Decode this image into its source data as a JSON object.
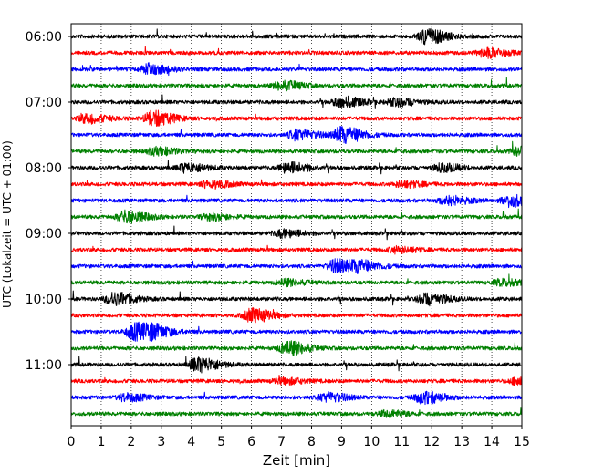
{
  "chart_data": {
    "type": "line",
    "title": "",
    "xlabel": "Zeit  [min]",
    "ylabel": "UTC (Lokalzeit = UTC + 01:00)",
    "xlim": [
      0,
      15
    ],
    "x_ticks": [
      "0",
      "1",
      "2",
      "3",
      "4",
      "5",
      "6",
      "7",
      "8",
      "9",
      "10",
      "11",
      "12",
      "13",
      "14",
      "15"
    ],
    "y_ticks": [
      {
        "label": "06:00",
        "row": 0
      },
      {
        "label": "07:00",
        "row": 4
      },
      {
        "label": "08:00",
        "row": 8
      },
      {
        "label": "09:00",
        "row": 12
      },
      {
        "label": "10:00",
        "row": 16
      },
      {
        "label": "11:00",
        "row": 20
      }
    ],
    "grid": "vertical-dotted",
    "row_minutes": 15,
    "colors": [
      "#000000",
      "#ff0000",
      "#0000ff",
      "#008000"
    ],
    "rows": [
      {
        "color": "#000000",
        "events": [
          [
            11.8,
            1.0
          ]
        ]
      },
      {
        "color": "#ff0000",
        "events": [
          [
            13.8,
            0.6
          ]
        ]
      },
      {
        "color": "#0000ff",
        "events": [
          [
            2.6,
            0.7
          ]
        ]
      },
      {
        "color": "#008000",
        "events": [
          [
            7.0,
            0.6
          ]
        ]
      },
      {
        "color": "#000000",
        "events": [
          [
            9.0,
            0.7
          ],
          [
            10.8,
            0.5
          ]
        ]
      },
      {
        "color": "#ff0000",
        "events": [
          [
            0.5,
            0.6
          ],
          [
            2.7,
            1.0
          ]
        ]
      },
      {
        "color": "#0000ff",
        "events": [
          [
            7.5,
            0.7
          ],
          [
            9.0,
            1.1
          ]
        ]
      },
      {
        "color": "#008000",
        "events": [
          [
            2.8,
            0.5
          ],
          [
            14.9,
            0.5
          ]
        ]
      },
      {
        "color": "#000000",
        "events": [
          [
            3.8,
            0.6
          ],
          [
            7.2,
            0.7
          ],
          [
            12.3,
            0.5
          ]
        ]
      },
      {
        "color": "#ff0000",
        "events": [
          [
            4.6,
            0.5
          ],
          [
            11.0,
            0.4
          ]
        ]
      },
      {
        "color": "#0000ff",
        "events": [
          [
            12.5,
            0.6
          ],
          [
            14.6,
            0.8
          ]
        ]
      },
      {
        "color": "#008000",
        "events": [
          [
            1.8,
            0.8
          ],
          [
            4.6,
            0.4
          ]
        ]
      },
      {
        "color": "#000000",
        "events": [
          [
            7.0,
            0.5
          ]
        ]
      },
      {
        "color": "#ff0000",
        "events": [
          [
            10.8,
            0.4
          ]
        ]
      },
      {
        "color": "#0000ff",
        "events": [
          [
            8.8,
            0.9
          ],
          [
            9.6,
            0.6
          ]
        ]
      },
      {
        "color": "#008000",
        "events": [
          [
            7.1,
            0.4
          ],
          [
            14.3,
            0.4
          ]
        ]
      },
      {
        "color": "#000000",
        "events": [
          [
            1.4,
            0.9
          ],
          [
            11.8,
            0.8
          ]
        ]
      },
      {
        "color": "#ff0000",
        "events": [
          [
            6.0,
            0.9
          ]
        ]
      },
      {
        "color": "#0000ff",
        "events": [
          [
            2.1,
            1.2
          ],
          [
            2.7,
            0.6
          ]
        ]
      },
      {
        "color": "#008000",
        "events": [
          [
            7.2,
            0.9
          ]
        ]
      },
      {
        "color": "#000000",
        "events": [
          [
            4.2,
            1.0
          ]
        ]
      },
      {
        "color": "#ff0000",
        "events": [
          [
            7.0,
            0.4
          ],
          [
            14.9,
            0.7
          ]
        ]
      },
      {
        "color": "#0000ff",
        "events": [
          [
            1.8,
            0.5
          ],
          [
            8.5,
            0.6
          ],
          [
            11.7,
            0.8
          ]
        ]
      },
      {
        "color": "#008000",
        "events": [
          [
            10.5,
            0.4
          ]
        ]
      }
    ]
  }
}
